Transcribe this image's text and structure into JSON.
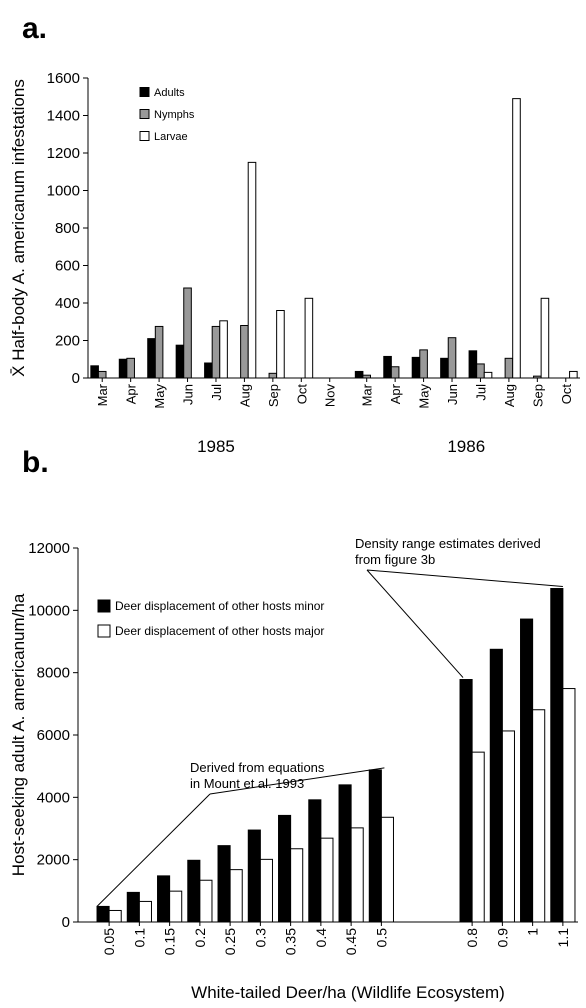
{
  "chart_data": [
    {
      "type": "bar",
      "panel_label": "a.",
      "ylabel": "X̄ Half-body A. americanum infestations",
      "groups": [
        {
          "label": "1985",
          "categories": [
            "Mar",
            "Apr",
            "May",
            "Jun",
            "Jul",
            "Aug",
            "Sep",
            "Oct",
            "Nov"
          ]
        },
        {
          "label": "1986",
          "categories": [
            "Mar",
            "Apr",
            "May",
            "Jun",
            "Jul",
            "Aug",
            "Sep",
            "Oct"
          ]
        }
      ],
      "series": [
        {
          "name": "Adults",
          "color": "#000000",
          "values": [
            65,
            100,
            210,
            175,
            80,
            0,
            0,
            0,
            0,
            35,
            115,
            110,
            105,
            145,
            0,
            0,
            0
          ]
        },
        {
          "name": "Nymphs",
          "color": "#999999",
          "values": [
            35,
            105,
            275,
            480,
            275,
            280,
            25,
            0,
            0,
            15,
            60,
            150,
            215,
            75,
            105,
            10,
            0
          ]
        },
        {
          "name": "Larvae",
          "color": "#ffffff",
          "values": [
            0,
            0,
            0,
            0,
            305,
            1150,
            360,
            425,
            0,
            0,
            0,
            0,
            0,
            30,
            1490,
            425,
            35
          ]
        }
      ],
      "ylim": [
        0,
        1600
      ],
      "yticks": [
        0,
        200,
        400,
        600,
        800,
        1000,
        1200,
        1400,
        1600
      ],
      "legend": "upper left"
    },
    {
      "type": "bar",
      "panel_label": "b.",
      "ylabel": "Host-seeking adult A. americanum/ha",
      "xlabel": "White-tailed Deer/ha (Wildlife Ecosystem)",
      "groups": [
        {
          "categories": [
            "0.05",
            "0.1",
            "0.15",
            "0.2",
            "0.25",
            "0.3",
            "0.35",
            "0.4",
            "0.45",
            "0.5"
          ]
        },
        {
          "categories": [
            "0.8",
            "0.9",
            "1",
            "1.1"
          ]
        }
      ],
      "series": [
        {
          "name": "Deer displacement of other hosts minor",
          "color": "#000000",
          "values": [
            500,
            950,
            1480,
            1980,
            2450,
            2950,
            3420,
            3920,
            4400,
            4880,
            7780,
            8750,
            9720,
            10700
          ]
        },
        {
          "name": "Deer displacement of other hosts major",
          "color": "#ffffff",
          "values": [
            370,
            660,
            990,
            1340,
            1680,
            2010,
            2350,
            2690,
            3020,
            3360,
            5450,
            6130,
            6810,
            7490
          ]
        }
      ],
      "annotations": [
        {
          "text": [
            "Derived from equations",
            "in Mount et al. 1993"
          ]
        },
        {
          "text": [
            "Density range estimates derived",
            "from figure 3b"
          ]
        }
      ],
      "ylim": [
        0,
        12000
      ],
      "yticks": [
        0,
        2000,
        4000,
        6000,
        8000,
        10000,
        12000
      ],
      "legend": "upper left"
    }
  ]
}
